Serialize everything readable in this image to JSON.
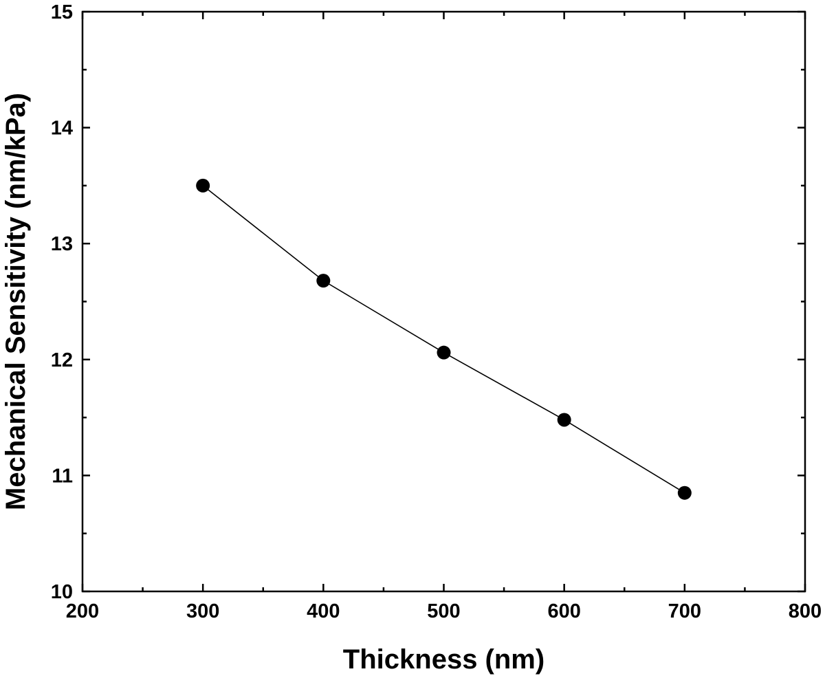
{
  "chart_data": {
    "type": "line",
    "title": "",
    "xlabel": "Thickness (nm)",
    "ylabel": "Mechanical Sensitivity (nm/kPa)",
    "xlim": [
      200,
      800
    ],
    "ylim": [
      10,
      15
    ],
    "x_ticks": [
      200,
      300,
      400,
      500,
      600,
      700,
      800
    ],
    "x_minor_ticks": [
      250,
      350,
      450,
      550,
      650,
      750
    ],
    "y_ticks": [
      10,
      11,
      12,
      13,
      14,
      15
    ],
    "y_minor_ticks": [
      10.5,
      11.5,
      12.5,
      13.5,
      14.5
    ],
    "grid": false,
    "legend": "none",
    "series": [
      {
        "x": [
          300,
          400,
          500,
          600,
          700
        ],
        "values": [
          13.5,
          12.68,
          12.06,
          11.48,
          10.85
        ],
        "color": "#000000",
        "marker": "circle"
      }
    ]
  }
}
